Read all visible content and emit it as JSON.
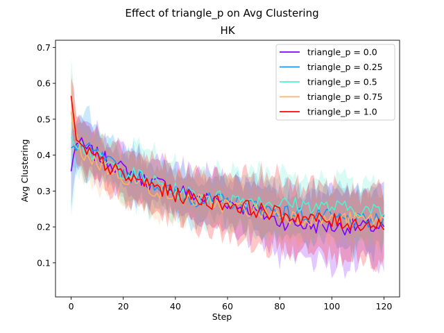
{
  "chart_data": {
    "type": "line",
    "title": "Effect of triangle_p on  Avg Clustering",
    "subtitle": "HK",
    "xlabel": "Step",
    "ylabel": "Avg Clustering",
    "xlim": [
      -6,
      126
    ],
    "ylim": [
      0.005,
      0.72
    ],
    "xticks": [
      0,
      20,
      40,
      60,
      80,
      100,
      120
    ],
    "yticks": [
      0.1,
      0.2,
      0.3,
      0.4,
      0.5,
      0.6,
      0.7
    ],
    "ytick_labels": [
      "0.1",
      "0.2",
      "0.3",
      "0.4",
      "0.5",
      "0.6",
      "0.7"
    ],
    "grid": false,
    "legend_position": "top-right",
    "bands": "shaded uncertainty range around each series",
    "x_anchor_steps": [
      0,
      2,
      5,
      10,
      20,
      30,
      40,
      50,
      60,
      70,
      80,
      90,
      100,
      110,
      120
    ],
    "series": [
      {
        "name": "triangle_p = 0.0",
        "color": "#8000ff",
        "mean": [
          0.355,
          0.44,
          0.42,
          0.4,
          0.36,
          0.325,
          0.31,
          0.28,
          0.27,
          0.245,
          0.215,
          0.205,
          0.2,
          0.2,
          0.2
        ],
        "band": [
          0.08,
          0.06,
          0.06,
          0.06,
          0.06,
          0.06,
          0.06,
          0.07,
          0.07,
          0.08,
          0.09,
          0.1,
          0.1,
          0.1,
          0.1
        ]
      },
      {
        "name": "triangle_p = 0.25",
        "color": "#1996f3",
        "mean": [
          0.42,
          0.43,
          0.42,
          0.4,
          0.35,
          0.33,
          0.29,
          0.275,
          0.27,
          0.26,
          0.24,
          0.235,
          0.225,
          0.215,
          0.215
        ],
        "band": [
          0.07,
          0.06,
          0.1,
          0.06,
          0.06,
          0.06,
          0.06,
          0.06,
          0.06,
          0.06,
          0.06,
          0.06,
          0.07,
          0.08,
          0.08
        ]
      },
      {
        "name": "triangle_p = 0.5",
        "color": "#4df3ce",
        "mean": [
          0.45,
          0.44,
          0.42,
          0.39,
          0.355,
          0.33,
          0.3,
          0.285,
          0.28,
          0.275,
          0.265,
          0.26,
          0.255,
          0.25,
          0.24
        ],
        "band": [
          0.2,
          0.07,
          0.08,
          0.06,
          0.07,
          0.08,
          0.07,
          0.07,
          0.08,
          0.09,
          0.08,
          0.07,
          0.07,
          0.07,
          0.07
        ]
      },
      {
        "name": "triangle_p = 0.75",
        "color": "#ffb360",
        "mean": [
          0.52,
          0.44,
          0.4,
          0.38,
          0.34,
          0.31,
          0.285,
          0.27,
          0.26,
          0.245,
          0.235,
          0.225,
          0.22,
          0.22,
          0.22
        ],
        "band": [
          0.1,
          0.06,
          0.06,
          0.06,
          0.06,
          0.06,
          0.06,
          0.06,
          0.06,
          0.06,
          0.06,
          0.06,
          0.06,
          0.06,
          0.06
        ]
      },
      {
        "name": "triangle_p = 1.0",
        "color": "#ff0000",
        "mean": [
          0.565,
          0.43,
          0.41,
          0.39,
          0.34,
          0.32,
          0.29,
          0.275,
          0.265,
          0.25,
          0.235,
          0.225,
          0.215,
          0.21,
          0.205
        ],
        "band": [
          0.07,
          0.07,
          0.06,
          0.06,
          0.07,
          0.07,
          0.07,
          0.08,
          0.08,
          0.09,
          0.09,
          0.09,
          0.09,
          0.09,
          0.09
        ]
      }
    ]
  }
}
